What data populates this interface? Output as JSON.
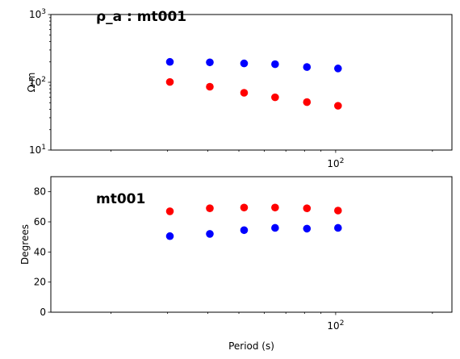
{
  "chart_data": [
    {
      "type": "scatter",
      "title": "ρ_a : mt001",
      "xlabel": "",
      "ylabel": "Ω·m",
      "xscale": "log",
      "yscale": "log",
      "xlim": [
        13,
        230
      ],
      "ylim": [
        10,
        1000
      ],
      "x_tick_labels": [
        {
          "value": 100,
          "base": "10",
          "exp": "2"
        }
      ],
      "y_tick_labels": [
        {
          "value": 10,
          "base": "10",
          "exp": "1"
        },
        {
          "value": 100,
          "base": "10",
          "exp": "2"
        },
        {
          "value": 1000,
          "base": "10",
          "exp": "3"
        }
      ],
      "grid": false,
      "series": [
        {
          "color": "#0000ff",
          "x": [
            30.5,
            40.6,
            51.9,
            64.8,
            81.4,
            101.7
          ],
          "y": [
            200,
            197,
            190,
            185,
            168,
            160
          ]
        },
        {
          "color": "#ff0000",
          "x": [
            30.5,
            40.6,
            51.9,
            64.8,
            81.4,
            101.7
          ],
          "y": [
            101,
            86,
            70,
            60,
            51,
            45
          ]
        }
      ]
    },
    {
      "type": "scatter",
      "title": "mt001",
      "xlabel": "Period (s)",
      "ylabel": "Degrees",
      "xscale": "log",
      "yscale": "linear",
      "xlim": [
        13,
        230
      ],
      "ylim": [
        0,
        90
      ],
      "x_tick_labels": [
        {
          "value": 100,
          "base": "10",
          "exp": "2"
        }
      ],
      "y_ticks": [
        0,
        20,
        40,
        60,
        80
      ],
      "grid": false,
      "series": [
        {
          "color": "#ff0000",
          "x": [
            30.5,
            40.6,
            51.9,
            64.8,
            81.4,
            101.7
          ],
          "y": [
            67,
            69,
            69.5,
            69.5,
            69,
            67.5
          ]
        },
        {
          "color": "#0000ff",
          "x": [
            30.5,
            40.6,
            51.9,
            64.8,
            81.4,
            101.7
          ],
          "y": [
            50.5,
            52,
            54.5,
            56,
            55.5,
            56
          ]
        }
      ]
    }
  ]
}
